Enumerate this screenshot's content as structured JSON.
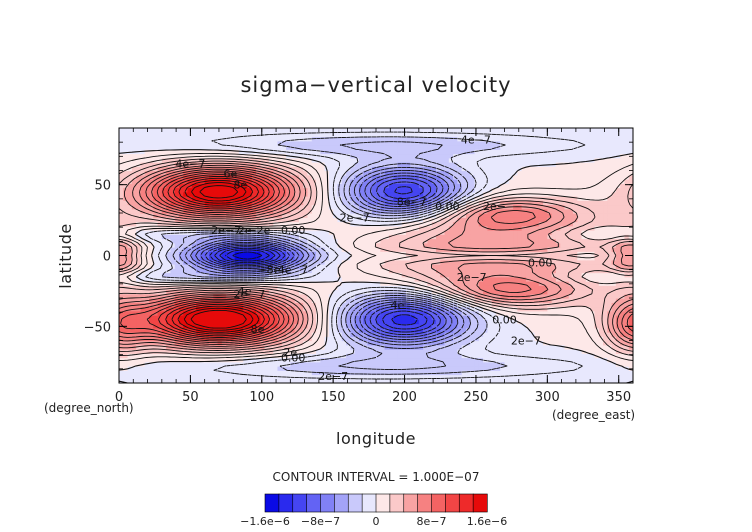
{
  "chart_data": {
    "type": "heatmap",
    "title": "sigma−vertical velocity",
    "xlabel": "longitude",
    "ylabel": "latitude",
    "x_unit": "(degree_east)",
    "y_unit": "(degree_north)",
    "xlim": [
      0,
      360
    ],
    "ylim": [
      -90,
      90
    ],
    "x_ticks": [
      0,
      50,
      100,
      150,
      200,
      250,
      300,
      350
    ],
    "x_tick_labels": [
      "0",
      "50",
      "100",
      "150",
      "200",
      "250",
      "300",
      "350"
    ],
    "y_ticks": [
      50,
      0,
      -50
    ],
    "y_tick_labels": [
      "50",
      "0",
      "−50"
    ],
    "contour_interval_text": "CONTOUR INTERVAL = 1.000E−07",
    "contour_interval": 1e-07,
    "colorbar": {
      "colors": [
        "#0a0ae6",
        "#2a2aee",
        "#4545f2",
        "#6363f4",
        "#8181f6",
        "#a3a3f8",
        "#c9c9fb",
        "#e8e8fd",
        "#fde8e8",
        "#fbc9c9",
        "#f8a3a3",
        "#f68181",
        "#f46363",
        "#f24545",
        "#ee2a2a",
        "#e60a0a"
      ],
      "tick_labels": [
        "−1.6e−6",
        "−8e−7",
        "0",
        "8e−7",
        "1.6e−6"
      ],
      "tick_values": [
        -1.6e-06,
        -8e-07,
        0,
        8e-07,
        1.6e-06
      ]
    },
    "features": [
      {
        "lon": 70,
        "lat": 45,
        "amp": 1.7e-06,
        "sx": 38,
        "sy": 13
      },
      {
        "lon": 70,
        "lat": -45,
        "amp": 1.8e-06,
        "sx": 40,
        "sy": 13
      },
      {
        "lon": 90,
        "lat": 0,
        "amp": -1.5e-06,
        "sx": 30,
        "sy": 8
      },
      {
        "lon": 200,
        "lat": 45,
        "amp": -1.2e-06,
        "sx": 30,
        "sy": 13
      },
      {
        "lon": 200,
        "lat": -45,
        "amp": -1.3e-06,
        "sx": 32,
        "sy": 13
      },
      {
        "lon": 260,
        "lat": 3,
        "amp": 6e-07,
        "sx": 60,
        "sy": 22
      },
      {
        "lon": 275,
        "lat": 30,
        "amp": 5e-07,
        "sx": 35,
        "sy": 8
      },
      {
        "lon": 275,
        "lat": -25,
        "amp": 5e-07,
        "sx": 35,
        "sy": 8
      },
      {
        "lon": 360,
        "lat": -50,
        "amp": 5e-07,
        "sx": 14,
        "sy": 14
      },
      {
        "lon": 0,
        "lat": 0,
        "amp": 5e-07,
        "sx": 12,
        "sy": 12
      },
      {
        "lon": 260,
        "lat": 0,
        "amp": -3e-07,
        "sx": 60,
        "sy": 3
      },
      {
        "lon": 40,
        "lat": 15,
        "amp": -3e-07,
        "sx": 60,
        "sy": 4
      },
      {
        "lon": 40,
        "lat": -15,
        "amp": -3e-07,
        "sx": 60,
        "sy": 4
      },
      {
        "lon": 180,
        "lat": 78,
        "amp": -3e-07,
        "sx": 100,
        "sy": 6
      },
      {
        "lon": 180,
        "lat": -78,
        "amp": -3e-07,
        "sx": 100,
        "sy": 6
      }
    ],
    "contour_labels": [
      {
        "text": "4e−7",
        "lon": 50,
        "lat": 65
      },
      {
        "text": "6e",
        "lon": 78,
        "lat": 58
      },
      {
        "text": "8e",
        "lon": 85,
        "lat": 50
      },
      {
        "text": "2e−7",
        "lon": 75,
        "lat": 18
      },
      {
        "text": "2e",
        "lon": 88,
        "lat": 18
      },
      {
        "text": "−2e",
        "lon": 98,
        "lat": 18
      },
      {
        "text": "0.00",
        "lon": 122,
        "lat": 18
      },
      {
        "text": "−8e",
        "lon": 105,
        "lat": -10
      },
      {
        "text": "4e",
        "lon": 116,
        "lat": -10
      },
      {
        "text": "7",
        "lon": 130,
        "lat": -10
      },
      {
        "text": "4e",
        "lon": 88,
        "lat": -25
      },
      {
        "text": "2e",
        "lon": 85,
        "lat": -27
      },
      {
        "text": "7",
        "lon": 100,
        "lat": -27
      },
      {
        "text": "8e",
        "lon": 97,
        "lat": -52
      },
      {
        "text": "2e",
        "lon": 120,
        "lat": -68
      },
      {
        "text": "0.00",
        "lon": 122,
        "lat": -72
      },
      {
        "text": "2e−7",
        "lon": 150,
        "lat": -85
      },
      {
        "text": "4e−7",
        "lon": 250,
        "lat": 82
      },
      {
        "text": "8e−7",
        "lon": 205,
        "lat": 38
      },
      {
        "text": "0.00",
        "lon": 230,
        "lat": 35
      },
      {
        "text": "2e−",
        "lon": 263,
        "lat": 35
      },
      {
        "text": "2e−7",
        "lon": 165,
        "lat": 27
      },
      {
        "text": "0.00",
        "lon": 295,
        "lat": -5
      },
      {
        "text": "2e−7",
        "lon": 247,
        "lat": -15
      },
      {
        "text": "4e",
        "lon": 195,
        "lat": -35
      },
      {
        "text": "0.00",
        "lon": 270,
        "lat": -45
      },
      {
        "text": "2e−7",
        "lon": 285,
        "lat": -60
      }
    ]
  }
}
